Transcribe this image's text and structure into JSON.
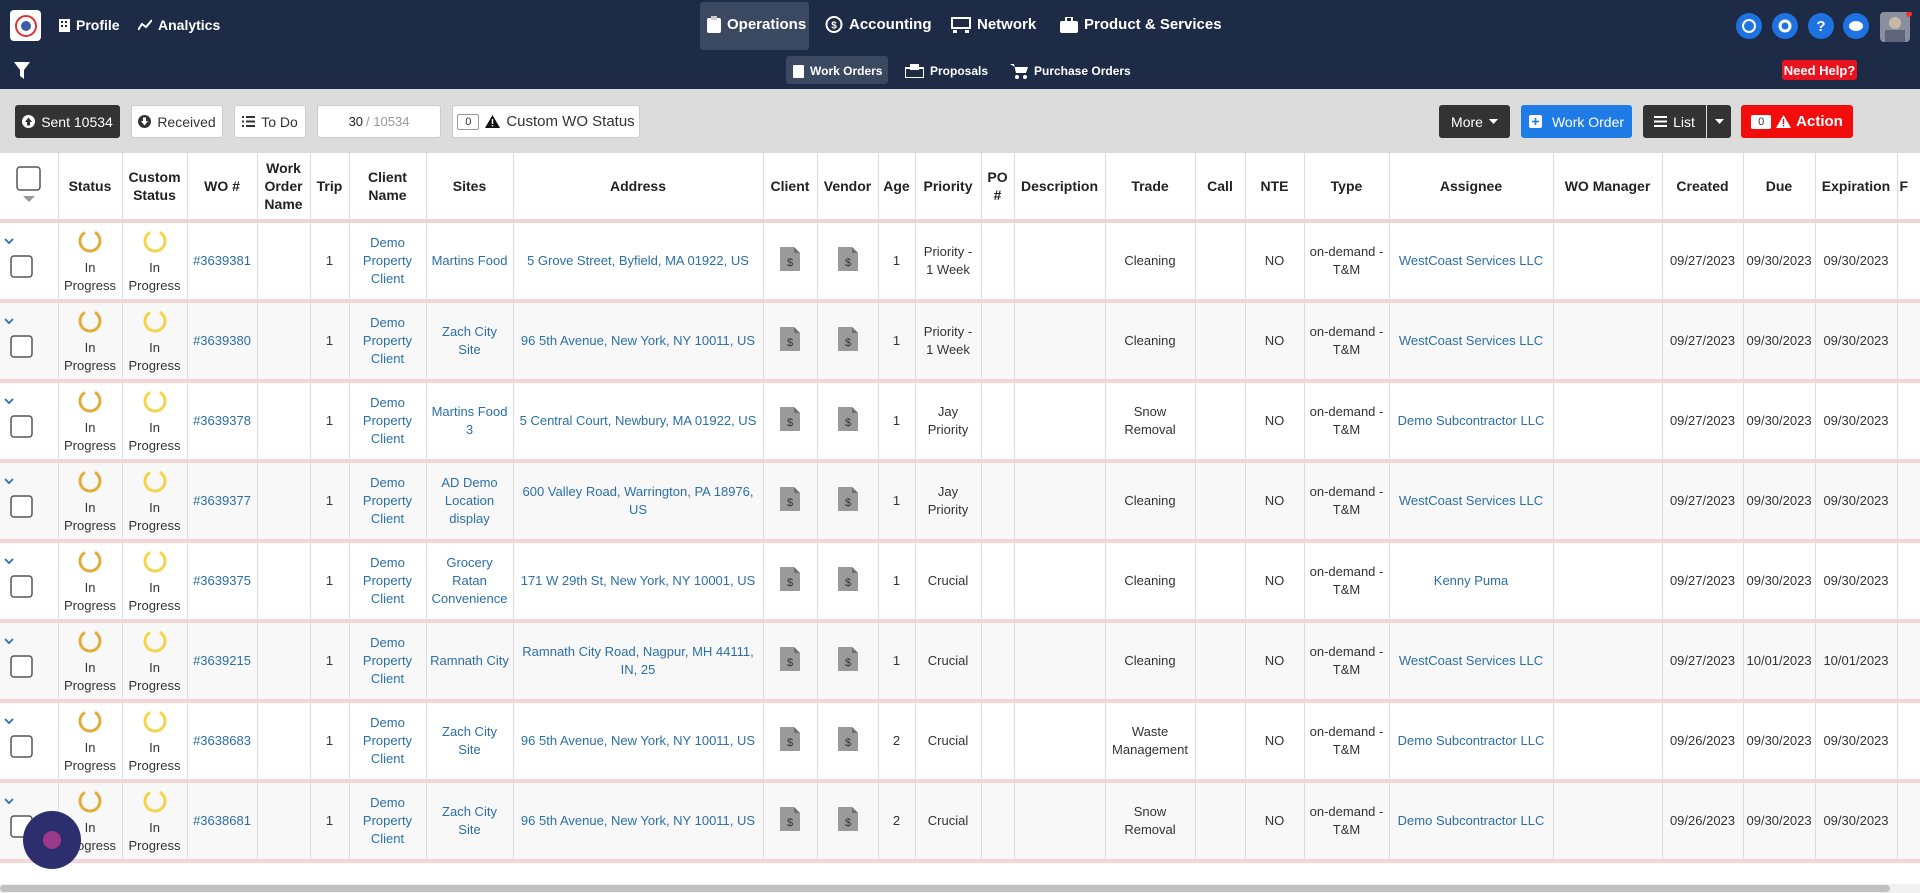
{
  "top_nav": {
    "left": [
      "Profile",
      "Analytics"
    ],
    "center": [
      "Operations",
      "Accounting",
      "Network",
      "Product & Services"
    ]
  },
  "sub_nav": {
    "items": [
      "Work Orders",
      "Proposals",
      "Purchase Orders"
    ],
    "help": "Need Help?"
  },
  "toolbar": {
    "sent": "Sent 10534",
    "received": "Received",
    "todo": "To Do",
    "page_count": "30",
    "page_total": "/ 10534",
    "custom_count": "0",
    "custom_status": "Custom WO Status",
    "more": "More",
    "work_order": "Work Order",
    "list": "List",
    "action_count": "0",
    "action": "Action"
  },
  "table": {
    "headers": [
      "Status",
      "Custom Status",
      "WO #",
      "Work Order Name",
      "Trip",
      "Client Name",
      "Sites",
      "Address",
      "Client",
      "Vendor",
      "Age",
      "Priority",
      "PO #",
      "Description",
      "Trade",
      "Call",
      "NTE",
      "Type",
      "Assignee",
      "WO Manager",
      "Created",
      "Due",
      "Expiration",
      "F"
    ],
    "rows": [
      {
        "status": "In Progress",
        "custom_status": "In Progress",
        "wo_number": "#3639381",
        "trip": 1,
        "client_name": "Demo Property Client",
        "site": "Martins Food",
        "address": "5 Grove Street, Byfield, MA 01922, US",
        "age": 1,
        "priority": "Priority - 1 Week",
        "trade": "Cleaning",
        "nte": "NO",
        "type": "on-demand - T&M",
        "assignee": "WestCoast Services LLC",
        "created": "09/27/2023",
        "due": "09/30/2023",
        "expiration": "09/30/2023"
      },
      {
        "status": "In Progress",
        "custom_status": "In Progress",
        "wo_number": "#3639380",
        "trip": 1,
        "client_name": "Demo Property Client",
        "site": "Zach City Site",
        "address": "96 5th Avenue, New York, NY 10011, US",
        "age": 1,
        "priority": "Priority - 1 Week",
        "trade": "Cleaning",
        "nte": "NO",
        "type": "on-demand - T&M",
        "assignee": "WestCoast Services LLC",
        "created": "09/27/2023",
        "due": "09/30/2023",
        "expiration": "09/30/2023"
      },
      {
        "status": "In Progress",
        "custom_status": "In Progress",
        "wo_number": "#3639378",
        "trip": 1,
        "client_name": "Demo Property Client",
        "site": "Martins Food 3",
        "address": "5 Central Court, Newbury, MA 01922, US",
        "age": 1,
        "priority": "Jay Priority",
        "trade": "Snow Removal",
        "nte": "NO",
        "type": "on-demand - T&M",
        "assignee": "Demo Subcontractor LLC",
        "created": "09/27/2023",
        "due": "09/30/2023",
        "expiration": "09/30/2023"
      },
      {
        "status": "In Progress",
        "custom_status": "In Progress",
        "wo_number": "#3639377",
        "trip": 1,
        "client_name": "Demo Property Client",
        "site": "AD Demo Location display",
        "address": "600 Valley Road, Warrington, PA 18976, US",
        "age": 1,
        "priority": "Jay Priority",
        "trade": "Cleaning",
        "nte": "NO",
        "type": "on-demand - T&M",
        "assignee": "WestCoast Services LLC",
        "created": "09/27/2023",
        "due": "09/30/2023",
        "expiration": "09/30/2023"
      },
      {
        "status": "In Progress",
        "custom_status": "In Progress",
        "wo_number": "#3639375",
        "trip": 1,
        "client_name": "Demo Property Client",
        "site": "Grocery Ratan Convenience",
        "address": "171 W 29th St, New York, NY 10001, US",
        "age": 1,
        "priority": "Crucial",
        "trade": "Cleaning",
        "nte": "NO",
        "type": "on-demand - T&M",
        "assignee": "Kenny Puma",
        "created": "09/27/2023",
        "due": "09/30/2023",
        "expiration": "09/30/2023"
      },
      {
        "status": "In Progress",
        "custom_status": "In Progress",
        "wo_number": "#3639215",
        "trip": 1,
        "client_name": "Demo Property Client",
        "site": "Ramnath City",
        "address": "Ramnath City Road, Nagpur, MH 44111, IN, 25",
        "age": 1,
        "priority": "Crucial",
        "trade": "Cleaning",
        "nte": "NO",
        "type": "on-demand - T&M",
        "assignee": "WestCoast Services LLC",
        "created": "09/27/2023",
        "due": "10/01/2023",
        "expiration": "10/01/2023"
      },
      {
        "status": "In Progress",
        "custom_status": "In Progress",
        "wo_number": "#3638683",
        "trip": 1,
        "client_name": "Demo Property Client",
        "site": "Zach City Site",
        "address": "96 5th Avenue, New York, NY 10011, US",
        "age": 2,
        "priority": "Crucial",
        "trade": "Waste Management",
        "nte": "NO",
        "type": "on-demand - T&M",
        "assignee": "Demo Subcontractor LLC",
        "created": "09/26/2023",
        "due": "09/30/2023",
        "expiration": "09/30/2023"
      },
      {
        "status": "In Progress",
        "custom_status": "In Progress",
        "wo_number": "#3638681",
        "trip": 1,
        "client_name": "Demo Property Client",
        "site": "Zach City Site",
        "address": "96 5th Avenue, New York, NY 10011, US",
        "age": 2,
        "priority": "Crucial",
        "trade": "Snow Removal",
        "nte": "NO",
        "type": "on-demand - T&M",
        "assignee": "Demo Subcontractor LLC",
        "created": "09/26/2023",
        "due": "09/30/2023",
        "expiration": "09/30/2023"
      }
    ]
  }
}
